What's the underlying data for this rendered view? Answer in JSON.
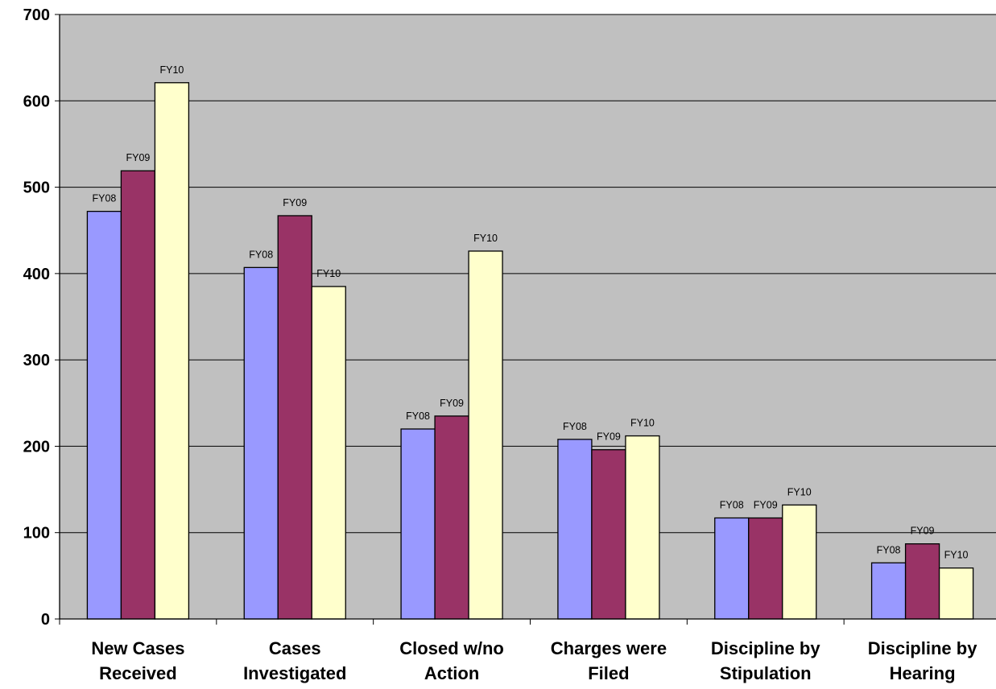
{
  "chart_data": {
    "type": "bar",
    "title": "",
    "xlabel": "",
    "ylabel": "",
    "ylim": [
      0,
      700
    ],
    "yticks": [
      0,
      100,
      200,
      300,
      400,
      500,
      600,
      700
    ],
    "grid": true,
    "legend": "none",
    "categories": [
      [
        "New Cases",
        "Received"
      ],
      [
        "Cases",
        "Investigated"
      ],
      [
        "Closed w/no",
        "Action"
      ],
      [
        "Charges were",
        "Filed"
      ],
      [
        "Discipline by",
        "Stipulation"
      ],
      [
        "Discipline by",
        "Hearing"
      ]
    ],
    "series": [
      {
        "label": "FY08",
        "color": "#9999ff",
        "values": [
          472,
          407,
          220,
          208,
          117,
          65
        ]
      },
      {
        "label": "FY09",
        "color": "#993366",
        "values": [
          519,
          467,
          235,
          196,
          117,
          87
        ]
      },
      {
        "label": "FY10",
        "color": "#ffffcc",
        "values": [
          621,
          385,
          426,
          212,
          132,
          59
        ]
      }
    ],
    "plot_background": "#c0c0c0"
  }
}
